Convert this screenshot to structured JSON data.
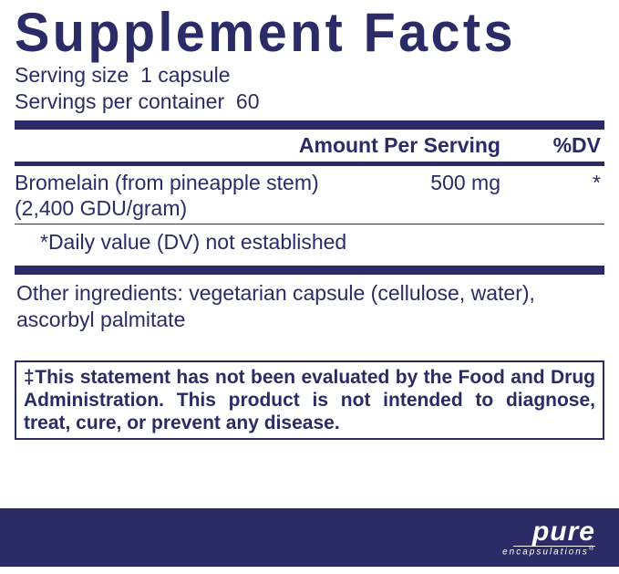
{
  "title": "Supplement Facts",
  "serving_size_label": "Serving size",
  "serving_size_value": "1 capsule",
  "servings_per_container_label": "Servings per container",
  "servings_per_container_value": "60",
  "headers": {
    "amount": "Amount Per Serving",
    "dv": "%DV"
  },
  "ingredient": {
    "name_line1": "Bromelain (from pineapple stem)",
    "name_line2": "(2,400 GDU/gram)",
    "amount": "500 mg",
    "dv": "*"
  },
  "dv_note": "*Daily value (DV) not established",
  "other_ingredients": "Other ingredients: vegetarian capsule (cellulose, water), ascorbyl palmitate",
  "disclaimer": "‡This statement has not been evaluated by the Food and Drug Administration. This product is not intended to diagnose, treat, cure, or prevent any disease.",
  "brand": {
    "main": "pure",
    "sub": "encapsulations"
  },
  "colors": {
    "primary": "#2b2b67",
    "background": "#ffffff"
  }
}
